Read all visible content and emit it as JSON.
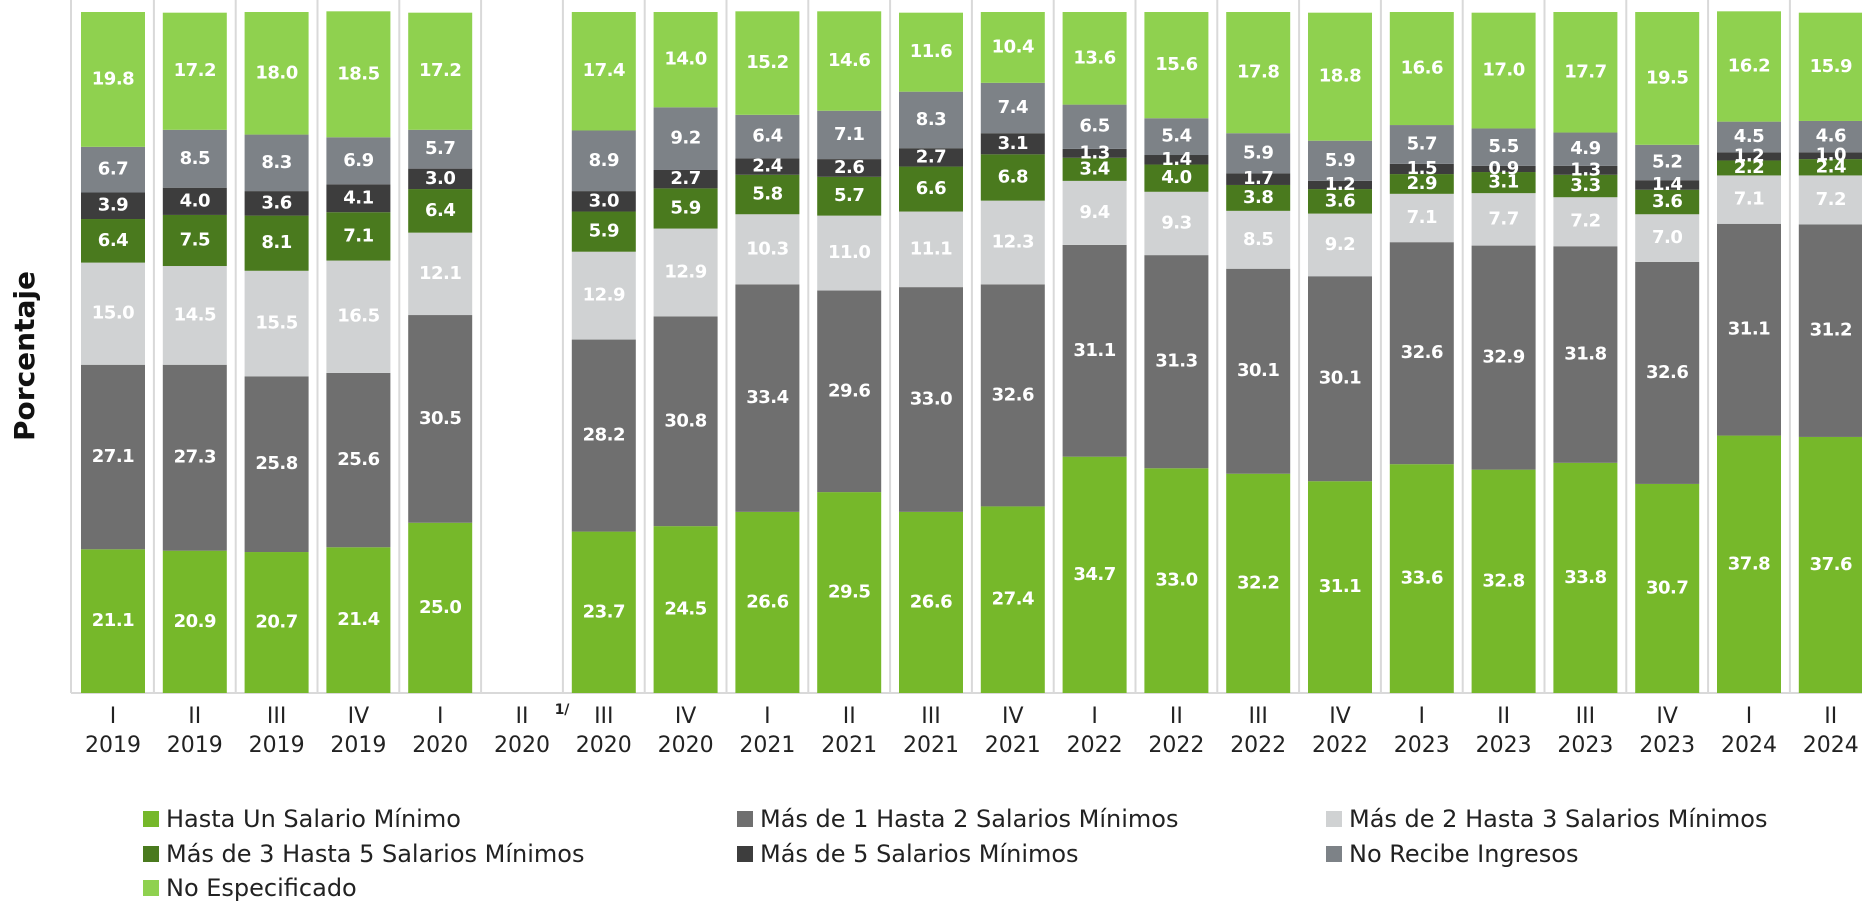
{
  "chart_data": {
    "type": "stacked_bar",
    "y_label": "Porcentaje",
    "annotation": "1/",
    "ylim": [
      0,
      100
    ],
    "categories": [
      [
        "I",
        "2019"
      ],
      [
        "II",
        "2019"
      ],
      [
        "III",
        "2019"
      ],
      [
        "IV",
        "2019"
      ],
      [
        "I",
        "2020"
      ],
      [
        "II",
        "2020"
      ],
      [
        "III",
        "2020"
      ],
      [
        "IV",
        "2020"
      ],
      [
        "I",
        "2021"
      ],
      [
        "II",
        "2021"
      ],
      [
        "III",
        "2021"
      ],
      [
        "IV",
        "2021"
      ],
      [
        "I",
        "2022"
      ],
      [
        "II",
        "2022"
      ],
      [
        "III",
        "2022"
      ],
      [
        "IV",
        "2022"
      ],
      [
        "I",
        "2023"
      ],
      [
        "II",
        "2023"
      ],
      [
        "III",
        "2023"
      ],
      [
        "IV",
        "2023"
      ],
      [
        "I",
        "2024"
      ],
      [
        "II",
        "2024"
      ]
    ],
    "series": [
      {
        "name": "Hasta Un Salario Mínimo",
        "color": "#76b82a",
        "values": [
          21.1,
          20.9,
          20.7,
          21.4,
          25.0,
          null,
          23.7,
          24.5,
          26.6,
          29.5,
          26.6,
          27.4,
          34.7,
          33.0,
          32.2,
          31.1,
          33.6,
          32.8,
          33.8,
          30.7,
          37.8,
          37.6
        ],
        "value_labels": [
          "21.1",
          "20.9",
          "20.7",
          "21.4",
          "25.0",
          null,
          "23.7",
          "24.5",
          "26.6",
          "29.5",
          "26.6",
          "27.4",
          "34.7",
          "33.0",
          "32.2",
          "31.1",
          "33.6",
          "32.8",
          "33.8",
          "30.7",
          "37.8",
          "37.6"
        ]
      },
      {
        "name": "Más de 1 Hasta 2 Salarios Mínimos",
        "color": "#6f6f6f",
        "values": [
          27.1,
          27.3,
          25.8,
          25.6,
          30.5,
          null,
          28.2,
          30.8,
          33.4,
          29.6,
          33.0,
          32.6,
          31.1,
          31.3,
          30.1,
          30.1,
          32.6,
          32.9,
          31.8,
          32.6,
          31.1,
          31.2
        ],
        "value_labels": [
          "27.1",
          "27.3",
          "25.8",
          "25.6",
          "30.5",
          null,
          "28.2",
          "30.8",
          "33.4",
          "29.6",
          "33.0",
          "32.6",
          "31.1",
          "31.3",
          "30.1",
          "30.1",
          "32.6",
          "32.9",
          "31.8",
          "32.6",
          "31.1",
          "31.2"
        ]
      },
      {
        "name": "Más de 2 Hasta 3 Salarios Mínimos",
        "color": "#d0d2d3",
        "values": [
          15.0,
          14.5,
          15.5,
          16.5,
          12.1,
          null,
          12.9,
          12.9,
          10.3,
          11.0,
          11.1,
          12.3,
          9.4,
          9.3,
          8.5,
          9.2,
          7.1,
          7.7,
          7.2,
          7.0,
          7.1,
          7.2
        ],
        "value_labels": [
          "15.0",
          "14.5",
          "15.5",
          "16.5",
          "12.1",
          null,
          "12.9",
          "12.9",
          "10.3",
          "11.0",
          "11.1",
          "12.3",
          "9.4",
          "9.3",
          "8.5",
          "9.2",
          "7.1",
          "7.7",
          "7.2",
          "7.0",
          "7.1",
          "7.2"
        ]
      },
      {
        "name": "Más de 3 Hasta 5 Salarios Mínimos",
        "color": "#4a7a1e",
        "values": [
          6.4,
          7.5,
          8.1,
          7.1,
          6.4,
          null,
          5.9,
          5.9,
          5.8,
          5.7,
          6.6,
          6.8,
          3.4,
          4.0,
          3.8,
          3.6,
          2.9,
          3.1,
          3.3,
          3.6,
          2.2,
          2.4
        ],
        "value_labels": [
          "6.4",
          "7.5",
          "8.1",
          "7.1",
          "6.4",
          null,
          "5.9",
          "5.9",
          "5.8",
          "5.7",
          "6.6",
          "6.8",
          "3.4",
          "4.0",
          "3.8",
          "3.6",
          "2.9",
          "3.1",
          "3.3",
          "3.6",
          "2.2",
          "2.4"
        ]
      },
      {
        "name": "Más de 5 Salarios Mínimos",
        "color": "#3d3d3d",
        "values": [
          3.9,
          4.0,
          3.6,
          4.1,
          3.0,
          null,
          3.0,
          2.7,
          2.4,
          2.6,
          2.7,
          3.1,
          1.3,
          1.4,
          1.7,
          1.2,
          1.5,
          0.9,
          1.3,
          1.4,
          1.2,
          1.0
        ],
        "value_labels": [
          "3.9",
          "4.0",
          "3.6",
          "4.1",
          "3.0",
          null,
          "3.0",
          "2.7",
          "2.4",
          "2.6",
          "2.7",
          "3.1",
          "1.3",
          "1.4",
          "1.7",
          "1.2",
          "1.5",
          "0.9",
          "1.3",
          "1.4",
          "1.2",
          "1.0"
        ]
      },
      {
        "name": "No Recibe Ingresos",
        "color": "#7d8287",
        "values": [
          6.7,
          8.5,
          8.3,
          6.9,
          5.7,
          null,
          8.9,
          9.2,
          6.4,
          7.1,
          8.3,
          7.4,
          6.5,
          5.4,
          5.9,
          5.9,
          5.7,
          5.5,
          4.9,
          5.2,
          4.5,
          4.6
        ],
        "value_labels": [
          "6.7",
          "8.5",
          "8.3",
          "6.9",
          "5.7",
          null,
          "8.9",
          "9.2",
          "6.4",
          "7.1",
          "8.3",
          "7.4",
          "6.5",
          "5.4",
          "5.9",
          "5.9",
          "5.7",
          "5.5",
          "4.9",
          "5.2",
          "4.5",
          "4.6"
        ]
      },
      {
        "name": "No Especificado",
        "color": "#8fd14f",
        "values": [
          19.8,
          17.2,
          18.0,
          18.5,
          17.2,
          null,
          17.4,
          14.0,
          15.2,
          14.6,
          11.6,
          10.4,
          13.6,
          15.6,
          17.8,
          18.8,
          16.6,
          17.0,
          17.7,
          19.5,
          16.2,
          15.9
        ],
        "value_labels": [
          "19.8",
          "17.2",
          "18.0",
          "18.5",
          "17.2",
          null,
          "17.4",
          "14.0",
          "15.2",
          "14.6",
          "11.6",
          "10.4",
          "13.6",
          "15.6",
          "17.8",
          "18.8",
          "16.6",
          "17.0",
          "17.7",
          "19.5",
          "16.2",
          "15.9"
        ]
      }
    ]
  }
}
